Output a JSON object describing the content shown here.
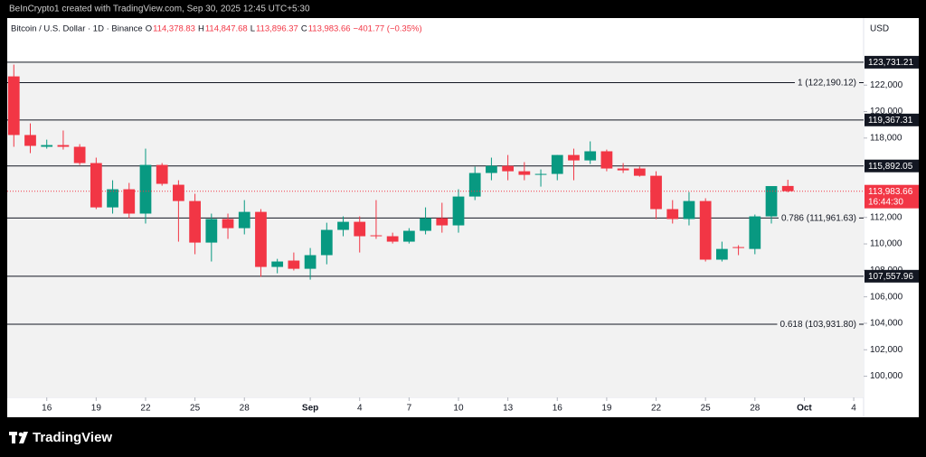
{
  "watermark": "BeInCrypto1 created with TradingView.com, Sep 30, 2025 12:45 UTC+5:30",
  "brand": "TradingView",
  "chart_data": {
    "type": "candlestick",
    "title": "Bitcoin / U.S. Dollar · 1D · Binance",
    "legend_values": [
      {
        "key": "O",
        "value": "114,378.83"
      },
      {
        "key": "H",
        "value": "114,847.68"
      },
      {
        "key": "L",
        "value": "113,896.37"
      },
      {
        "key": "C",
        "value": "113,983.66"
      }
    ],
    "change": "−401.77 (−0.35%)",
    "currency": "USD",
    "up_color": "#089981",
    "down_color": "#f23645",
    "open": [
      122660,
      118230,
      117340,
      117470,
      117340,
      116110,
      112760,
      114130,
      112290,
      115970,
      114470,
      113240,
      110100,
      111880,
      111190,
      112420,
      108260,
      108740,
      108120,
      109150,
      111060,
      111670,
      110650,
      110580,
      110170,
      110990,
      111950,
      111400,
      113580,
      115360,
      115900,
      115490,
      115220,
      115290,
      116720,
      116310,
      117000,
      115700,
      115700,
      115150,
      112630,
      111880,
      113240,
      108810,
      109760,
      109620,
      112080,
      114378.83
    ],
    "high": [
      123550,
      119110,
      117880,
      118570,
      117540,
      116520,
      114810,
      114610,
      117200,
      116110,
      114810,
      113790,
      112290,
      112290,
      113310,
      112630,
      108870,
      109350,
      109690,
      111600,
      112080,
      112080,
      113310,
      110850,
      111190,
      112760,
      113110,
      114130,
      115840,
      116520,
      116720,
      116180,
      115630,
      116720,
      117200,
      117750,
      117130,
      116110,
      115840,
      115490,
      113310,
      113920,
      113450,
      110170,
      109900,
      112220,
      114270,
      114847.68
    ],
    "low": [
      117340,
      116860,
      117200,
      117130,
      115970,
      112630,
      112290,
      111950,
      111540,
      114400,
      110170,
      109220,
      108670,
      110380,
      110720,
      107510,
      107780,
      107990,
      107300,
      108460,
      110580,
      109350,
      110380,
      110030,
      110030,
      110720,
      110850,
      110850,
      113310,
      114810,
      114810,
      114810,
      114330,
      114810,
      114810,
      116040,
      115490,
      115360,
      115080,
      111880,
      111540,
      111400,
      108670,
      108670,
      109150,
      109220,
      111540,
      113896.37
    ],
    "close": [
      118230,
      117410,
      117470,
      117340,
      116110,
      112760,
      114130,
      112290,
      115970,
      114540,
      113240,
      110100,
      111880,
      111190,
      112420,
      108260,
      108670,
      108120,
      109150,
      111060,
      111670,
      110580,
      110580,
      110170,
      110990,
      111950,
      111400,
      113580,
      115360,
      115900,
      115490,
      115220,
      115290,
      116720,
      116310,
      117000,
      115700,
      115560,
      115150,
      112630,
      111880,
      113240,
      108810,
      109620,
      109690,
      112080,
      114370,
      113983.66
    ],
    "xlim": [
      -0.4,
      51.6
    ],
    "xticks": [
      {
        "value": 2,
        "label": "16"
      },
      {
        "value": 5,
        "label": "19"
      },
      {
        "value": 8,
        "label": "22"
      },
      {
        "value": 11,
        "label": "25"
      },
      {
        "value": 14,
        "label": "28"
      },
      {
        "value": 18,
        "label": "Sep"
      },
      {
        "value": 21,
        "label": "4"
      },
      {
        "value": 24,
        "label": "7"
      },
      {
        "value": 27,
        "label": "10"
      },
      {
        "value": 30,
        "label": "13"
      },
      {
        "value": 33,
        "label": "16"
      },
      {
        "value": 36,
        "label": "19"
      },
      {
        "value": 39,
        "label": "22"
      },
      {
        "value": 42,
        "label": "25"
      },
      {
        "value": 45,
        "label": "28"
      },
      {
        "value": 48,
        "label": "Oct"
      },
      {
        "value": 51,
        "label": "4"
      }
    ],
    "ylim": [
      98400,
      127000
    ],
    "yticks": [
      {
        "value": 100000,
        "label": "100,000"
      },
      {
        "value": 102000,
        "label": "102,000"
      },
      {
        "value": 104000,
        "label": "104,000"
      },
      {
        "value": 106000,
        "label": "106,000"
      },
      {
        "value": 108000,
        "label": "108,000"
      },
      {
        "value": 110000,
        "label": "110,000"
      },
      {
        "value": 112000,
        "label": "112,000"
      },
      {
        "value": 118000,
        "label": "118,000"
      },
      {
        "value": 120000,
        "label": "120,000"
      },
      {
        "value": 122000,
        "label": "122,000"
      }
    ],
    "levels": [
      {
        "value": 123731.21,
        "axis_label": "123,731.21"
      },
      {
        "value": 122190.12,
        "line_label": "1 (122,190.12)"
      },
      {
        "value": 119367.31,
        "axis_label": "119,367.31"
      },
      {
        "value": 115892.05,
        "axis_label": "115,892.05"
      },
      {
        "value": 111961.63,
        "line_label": "0.786 (111,961.63)"
      },
      {
        "value": 107557.96,
        "axis_label": "107,557.96"
      },
      {
        "value": 103931.8,
        "line_label": "0.618 (103,931.80)"
      }
    ],
    "last_price": {
      "value": 113983.66,
      "label": "113,983.66",
      "countdown": "16:44:30"
    }
  }
}
